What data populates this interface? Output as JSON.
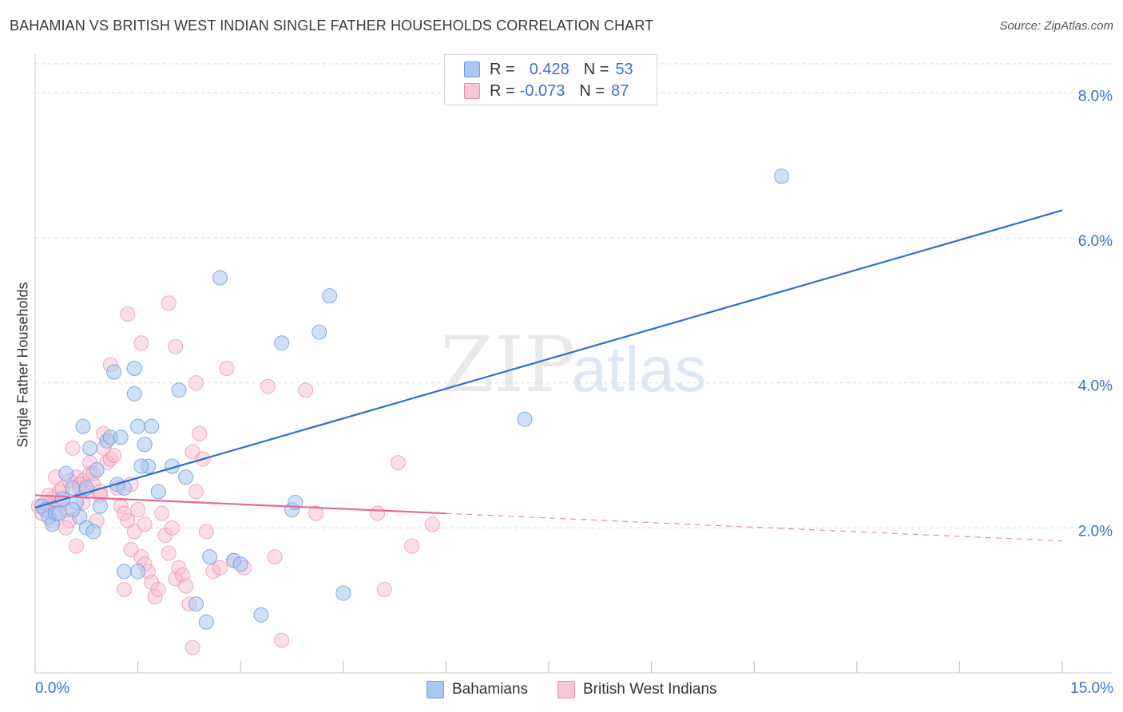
{
  "title": "BAHAMIAN VS BRITISH WEST INDIAN SINGLE FATHER HOUSEHOLDS CORRELATION CHART",
  "source": "Source: ZipAtlas.com",
  "legend_top": {
    "rows": [
      {
        "r_label": "R =",
        "r_value": "0.428",
        "n_label": "N =",
        "n_value": "53"
      },
      {
        "r_label": "R =",
        "r_value": "-0.073",
        "n_label": "N =",
        "n_value": "87"
      }
    ]
  },
  "legend_bottom": [
    "Bahamians",
    "British West Indians"
  ],
  "watermark": {
    "zip": "ZIP",
    "atlas": "atlas"
  },
  "colors": {
    "bahamians_fill": "#a9c7ee",
    "bahamians_stroke": "#6f9fdc",
    "bahamians_line": "#2f6fcd",
    "bwi_fill": "#f6b9cb",
    "bwi_stroke": "#ec8fab",
    "bwi_line": "#e66a95",
    "axis_label": "#3b73c8",
    "grid": "#d9d9d9"
  },
  "chart_data": {
    "type": "scatter",
    "title": "BAHAMIAN VS BRITISH WEST INDIAN SINGLE FATHER HOUSEHOLDS CORRELATION CHART",
    "xlabel": "",
    "ylabel": "Single Father Households",
    "xlim": [
      0,
      15
    ],
    "ylim": [
      0,
      8.4
    ],
    "x_tick_labels": [
      "0.0%",
      "15.0%"
    ],
    "y_ticks": [
      2,
      4,
      6,
      8
    ],
    "y_tick_labels": [
      "2.0%",
      "4.0%",
      "6.0%",
      "8.0%"
    ],
    "grid": true,
    "legend_position": "bottom",
    "series": [
      {
        "name": "Bahamians",
        "r": 0.428,
        "n": 53,
        "trend": {
          "x": [
            0,
            15
          ],
          "y": [
            2.28,
            6.38
          ]
        },
        "points": [
          [
            0.1,
            2.3
          ],
          [
            0.15,
            2.25
          ],
          [
            0.2,
            2.15
          ],
          [
            0.25,
            2.05
          ],
          [
            0.3,
            2.2
          ],
          [
            0.35,
            2.2
          ],
          [
            0.4,
            2.4
          ],
          [
            0.45,
            2.75
          ],
          [
            0.55,
            2.55
          ],
          [
            0.6,
            2.35
          ],
          [
            0.7,
            3.4
          ],
          [
            0.8,
            3.1
          ],
          [
            0.9,
            2.8
          ],
          [
            0.75,
            2.55
          ],
          [
            0.65,
            2.15
          ],
          [
            0.75,
            2.0
          ],
          [
            0.85,
            1.95
          ],
          [
            0.95,
            2.3
          ],
          [
            1.05,
            3.2
          ],
          [
            1.1,
            3.25
          ],
          [
            1.25,
            3.25
          ],
          [
            1.2,
            2.6
          ],
          [
            1.3,
            2.55
          ],
          [
            1.5,
            3.4
          ],
          [
            1.6,
            3.15
          ],
          [
            1.7,
            3.4
          ],
          [
            1.65,
            2.85
          ],
          [
            1.45,
            3.85
          ],
          [
            1.15,
            4.15
          ],
          [
            1.45,
            4.2
          ],
          [
            1.55,
            2.85
          ],
          [
            1.8,
            2.5
          ],
          [
            2.0,
            2.85
          ],
          [
            2.1,
            3.9
          ],
          [
            2.2,
            2.7
          ],
          [
            2.35,
            0.95
          ],
          [
            2.55,
            1.6
          ],
          [
            2.7,
            5.45
          ],
          [
            2.9,
            1.55
          ],
          [
            3.0,
            1.5
          ],
          [
            3.3,
            0.8
          ],
          [
            3.6,
            4.55
          ],
          [
            3.75,
            2.25
          ],
          [
            3.8,
            2.35
          ],
          [
            4.15,
            4.7
          ],
          [
            4.3,
            5.2
          ],
          [
            4.5,
            1.1
          ],
          [
            7.15,
            3.5
          ],
          [
            10.9,
            6.85
          ],
          [
            0.55,
            2.25
          ],
          [
            1.3,
            1.4
          ],
          [
            1.5,
            1.4
          ],
          [
            2.5,
            0.7
          ]
        ]
      },
      {
        "name": "British West Indians",
        "r": -0.073,
        "n": 87,
        "trend_solid": {
          "x": [
            0,
            6
          ],
          "y": [
            2.45,
            2.2
          ]
        },
        "trend_dashed": {
          "x": [
            6,
            15
          ],
          "y": [
            2.2,
            1.82
          ]
        },
        "points": [
          [
            0.05,
            2.3
          ],
          [
            0.1,
            2.2
          ],
          [
            0.15,
            2.35
          ],
          [
            0.2,
            2.3
          ],
          [
            0.25,
            2.4
          ],
          [
            0.3,
            2.7
          ],
          [
            0.35,
            2.5
          ],
          [
            0.4,
            2.55
          ],
          [
            0.45,
            2.25
          ],
          [
            0.5,
            2.1
          ],
          [
            0.55,
            3.1
          ],
          [
            0.6,
            2.7
          ],
          [
            0.65,
            2.55
          ],
          [
            0.7,
            2.65
          ],
          [
            0.75,
            2.5
          ],
          [
            0.8,
            2.75
          ],
          [
            0.85,
            2.6
          ],
          [
            0.9,
            2.1
          ],
          [
            0.95,
            2.5
          ],
          [
            1.0,
            3.3
          ],
          [
            1.05,
            2.9
          ],
          [
            1.1,
            2.95
          ],
          [
            1.15,
            3.0
          ],
          [
            1.2,
            2.55
          ],
          [
            1.25,
            2.3
          ],
          [
            1.3,
            2.2
          ],
          [
            1.35,
            2.1
          ],
          [
            1.4,
            2.6
          ],
          [
            1.45,
            1.95
          ],
          [
            1.5,
            2.25
          ],
          [
            1.55,
            1.6
          ],
          [
            1.6,
            1.5
          ],
          [
            1.65,
            1.4
          ],
          [
            1.7,
            1.25
          ],
          [
            1.75,
            1.05
          ],
          [
            1.8,
            1.15
          ],
          [
            1.85,
            2.2
          ],
          [
            1.9,
            1.9
          ],
          [
            1.95,
            1.65
          ],
          [
            2.0,
            2.0
          ],
          [
            2.05,
            1.3
          ],
          [
            2.1,
            1.45
          ],
          [
            2.15,
            1.35
          ],
          [
            2.2,
            1.2
          ],
          [
            2.25,
            0.95
          ],
          [
            2.3,
            3.05
          ],
          [
            2.35,
            2.5
          ],
          [
            2.4,
            3.3
          ],
          [
            2.45,
            2.95
          ],
          [
            2.5,
            1.95
          ],
          [
            2.6,
            1.4
          ],
          [
            2.7,
            1.45
          ],
          [
            2.8,
            4.2
          ],
          [
            2.9,
            1.55
          ],
          [
            3.05,
            1.45
          ],
          [
            3.4,
            3.95
          ],
          [
            3.5,
            1.6
          ],
          [
            3.6,
            0.45
          ],
          [
            3.95,
            3.9
          ],
          [
            4.1,
            2.2
          ],
          [
            5.0,
            2.2
          ],
          [
            5.1,
            1.15
          ],
          [
            5.3,
            2.9
          ],
          [
            5.5,
            1.75
          ],
          [
            5.8,
            2.05
          ],
          [
            1.1,
            4.25
          ],
          [
            1.55,
            4.55
          ],
          [
            1.35,
            4.95
          ],
          [
            1.95,
            5.1
          ],
          [
            2.05,
            4.5
          ],
          [
            2.35,
            4.0
          ],
          [
            0.6,
            1.75
          ],
          [
            0.2,
            2.45
          ],
          [
            0.25,
            2.1
          ],
          [
            0.35,
            2.35
          ],
          [
            0.45,
            2.0
          ],
          [
            0.5,
            2.65
          ],
          [
            0.65,
            2.6
          ],
          [
            0.7,
            2.35
          ],
          [
            0.8,
            2.9
          ],
          [
            0.85,
            2.75
          ],
          [
            0.95,
            2.45
          ],
          [
            1.0,
            3.1
          ],
          [
            1.3,
            1.15
          ],
          [
            1.4,
            1.7
          ],
          [
            1.6,
            2.05
          ],
          [
            2.3,
            0.35
          ]
        ]
      }
    ]
  }
}
